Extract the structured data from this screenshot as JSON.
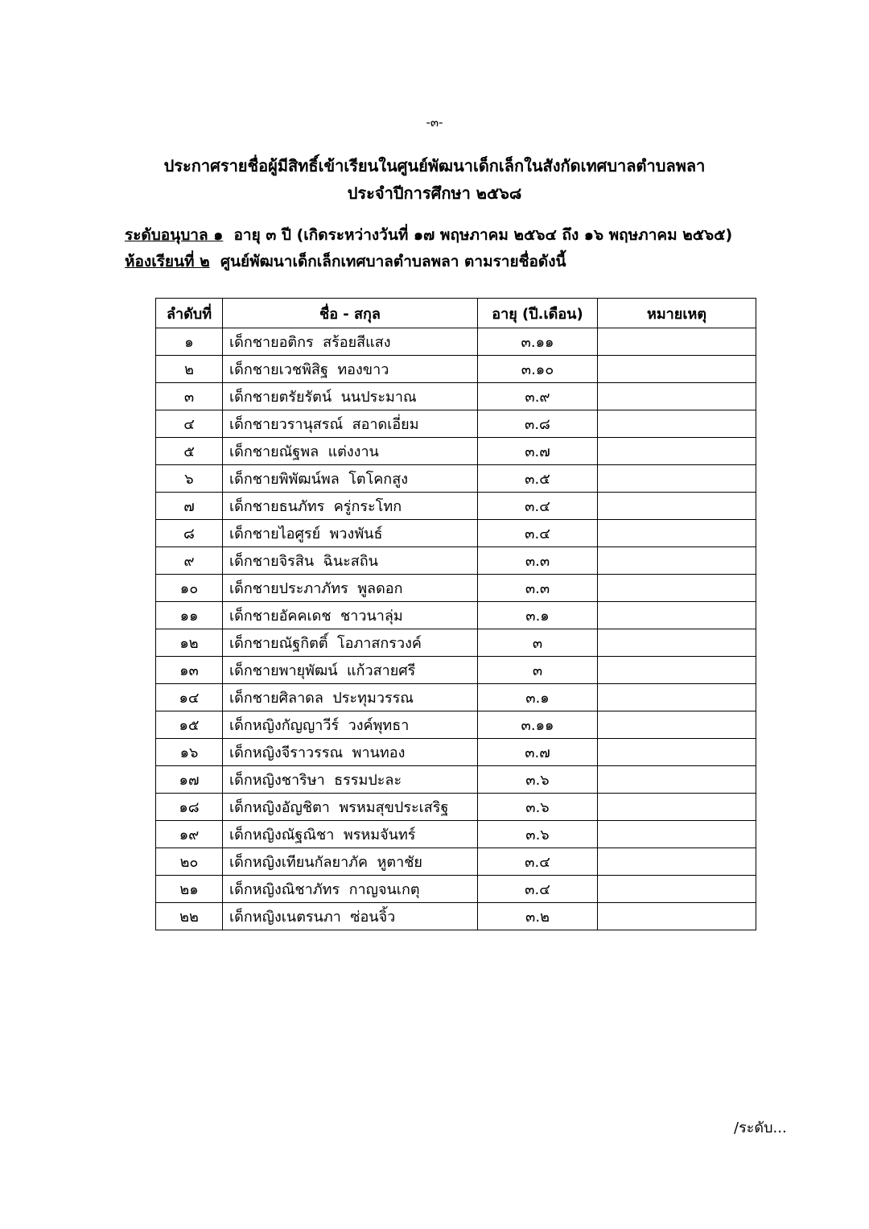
{
  "page_number": "-๓-",
  "header": {
    "title_line_1": "ประกาศรายชื่อผู้มีสิทธิ์เข้าเรียนในศูนย์พัฒนาเด็กเล็กในสังกัดเทศบาลตำบลพลา",
    "title_line_2": "ประจำปีการศึกษา ๒๕๖๘"
  },
  "level": {
    "label": "ระดับอนุบาล ๑",
    "text": "อายุ ๓ ปี (เกิดระหว่างวันที่ ๑๗ พฤษภาคม ๒๕๖๔ ถึง ๑๖ พฤษภาคม ๒๕๖๕)"
  },
  "room": {
    "label": "ห้องเรียนที่ ๒",
    "text": "ศูนย์พัฒนาเด็กเล็กเทศบาลตำบลพลา ตามรายชื่อดังนี้"
  },
  "table": {
    "columns": [
      "ลำดับที่",
      "ชื่อ - สกุล",
      "อายุ (ปี.เดือน)",
      "หมายเหตุ"
    ],
    "rows": [
      [
        "๑",
        "เด็กชายอติกร  สร้อยสีแสง",
        "๓.๑๑"
      ],
      [
        "๒",
        "เด็กชายเวชพิสิฐ  ทองขาว",
        "๓.๑๐"
      ],
      [
        "๓",
        "เด็กชายตรัยรัตน์  นนประมาณ",
        "๓.๙"
      ],
      [
        "๔",
        "เด็กชายวรานุสรณ์  สอาดเอี่ยม",
        "๓.๘"
      ],
      [
        "๕",
        "เด็กชายณัฐพล  แต่งงาน",
        "๓.๗"
      ],
      [
        "๖",
        "เด็กชายพิพัฒน์พล  โตโคกสูง",
        "๓.๕"
      ],
      [
        "๗",
        "เด็กชายธนภัทร  ครู่กระโทก",
        "๓.๔"
      ],
      [
        "๘",
        "เด็กชายไอศูรย์  พวงพันธ์",
        "๓.๔"
      ],
      [
        "๙",
        "เด็กชายจิรสิน  ฉินะสถิน",
        "๓.๓"
      ],
      [
        "๑๐",
        "เด็กชายประภาภัทร  พูลดอก",
        "๓.๓"
      ],
      [
        "๑๑",
        "เด็กชายอัคคเดช  ชาวนาลุ่ม",
        "๓.๑"
      ],
      [
        "๑๒",
        "เด็กชายณัฐกิตติ์  โอภาสกรวงค์",
        "๓"
      ],
      [
        "๑๓",
        "เด็กชายพายุพัฒน์  แก้วสายศรี",
        "๓"
      ],
      [
        "๑๔",
        "เด็กชายศิลาดล  ประทุมวรรณ",
        "๓.๑"
      ],
      [
        "๑๕",
        "เด็กหญิงกัญญาวีร์  วงค์พุทธา",
        "๓.๑๑"
      ],
      [
        "๑๖",
        "เด็กหญิงจีราวรรณ  พานทอง",
        "๓.๗"
      ],
      [
        "๑๗",
        "เด็กหญิงชาริษา  ธรรมปะละ",
        "๓.๖"
      ],
      [
        "๑๘",
        "เด็กหญิงอัญชิตา  พรหมสุขประเสริฐ",
        "๓.๖"
      ],
      [
        "๑๙",
        "เด็กหญิงณัฐณิชา  พรหมจันทร์",
        "๓.๖"
      ],
      [
        "๒๐",
        "เด็กหญิงเทียนกัลยาภัค  หูตาชัย",
        "๓.๔"
      ],
      [
        "๒๑",
        "เด็กหญิงณิชาภัทร  กาญจนเกตุ",
        "๓.๔"
      ],
      [
        "๒๒",
        "เด็กหญิงเนตรนภา  ซ่อนจิ้ว",
        "๓.๒"
      ]
    ]
  },
  "footer": "/ระดับ..."
}
